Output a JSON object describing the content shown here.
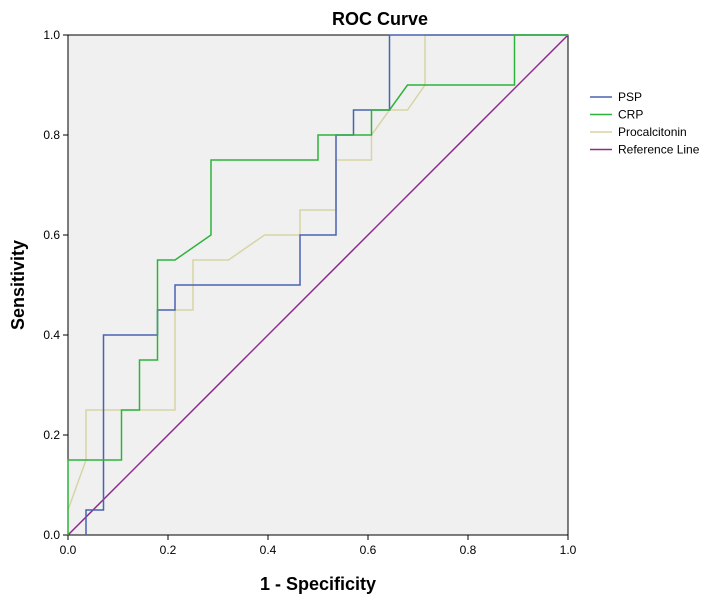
{
  "chart_data": {
    "type": "line",
    "title": "ROC Curve",
    "xlabel": "1 - Specificity",
    "ylabel": "Sensitivity",
    "xlim": [
      0,
      1
    ],
    "ylim": [
      0,
      1
    ],
    "xticks": [
      "0.0",
      "0.2",
      "0.4",
      "0.6",
      "0.8",
      "1.0"
    ],
    "yticks": [
      "0.0",
      "0.2",
      "0.4",
      "0.6",
      "0.8",
      "1.0"
    ],
    "legend_position": "right",
    "series": [
      {
        "name": "PSP",
        "color": "#4a63b0",
        "points": [
          [
            0.036,
            0
          ],
          [
            0.036,
            0.05
          ],
          [
            0.071,
            0.05
          ],
          [
            0.071,
            0.4
          ],
          [
            0.179,
            0.4
          ],
          [
            0.179,
            0.45
          ],
          [
            0.214,
            0.45
          ],
          [
            0.214,
            0.5
          ],
          [
            0.464,
            0.5
          ],
          [
            0.464,
            0.6
          ],
          [
            0.536,
            0.6
          ],
          [
            0.536,
            0.8
          ],
          [
            0.571,
            0.8
          ],
          [
            0.571,
            0.85
          ],
          [
            0.643,
            0.85
          ],
          [
            0.643,
            1.0
          ],
          [
            1.0,
            1.0
          ]
        ]
      },
      {
        "name": "CRP",
        "color": "#2eb33a",
        "points": [
          [
            0,
            0
          ],
          [
            0,
            0.15
          ],
          [
            0.107,
            0.15
          ],
          [
            0.107,
            0.25
          ],
          [
            0.143,
            0.25
          ],
          [
            0.143,
            0.35
          ],
          [
            0.179,
            0.35
          ],
          [
            0.179,
            0.55
          ],
          [
            0.214,
            0.55
          ],
          [
            0.286,
            0.6
          ],
          [
            0.286,
            0.75
          ],
          [
            0.5,
            0.75
          ],
          [
            0.5,
            0.8
          ],
          [
            0.607,
            0.8
          ],
          [
            0.607,
            0.85
          ],
          [
            0.643,
            0.85
          ],
          [
            0.679,
            0.9
          ],
          [
            0.893,
            0.9
          ],
          [
            0.893,
            1.0
          ],
          [
            1.0,
            1.0
          ]
        ]
      },
      {
        "name": "Procalcitonin",
        "color": "#d8d4a4",
        "points": [
          [
            0,
            0.05
          ],
          [
            0.036,
            0.15
          ],
          [
            0.036,
            0.25
          ],
          [
            0.214,
            0.25
          ],
          [
            0.214,
            0.45
          ],
          [
            0.25,
            0.45
          ],
          [
            0.25,
            0.55
          ],
          [
            0.321,
            0.55
          ],
          [
            0.393,
            0.6
          ],
          [
            0.464,
            0.6
          ],
          [
            0.464,
            0.65
          ],
          [
            0.536,
            0.65
          ],
          [
            0.536,
            0.75
          ],
          [
            0.607,
            0.75
          ],
          [
            0.607,
            0.8
          ],
          [
            0.643,
            0.85
          ],
          [
            0.679,
            0.85
          ],
          [
            0.714,
            0.9
          ],
          [
            0.714,
            1.0
          ],
          [
            1.0,
            1.0
          ]
        ]
      },
      {
        "name": "Reference Line",
        "color": "#8b2c8b",
        "points": [
          [
            0,
            0
          ],
          [
            1,
            1
          ]
        ]
      }
    ]
  }
}
